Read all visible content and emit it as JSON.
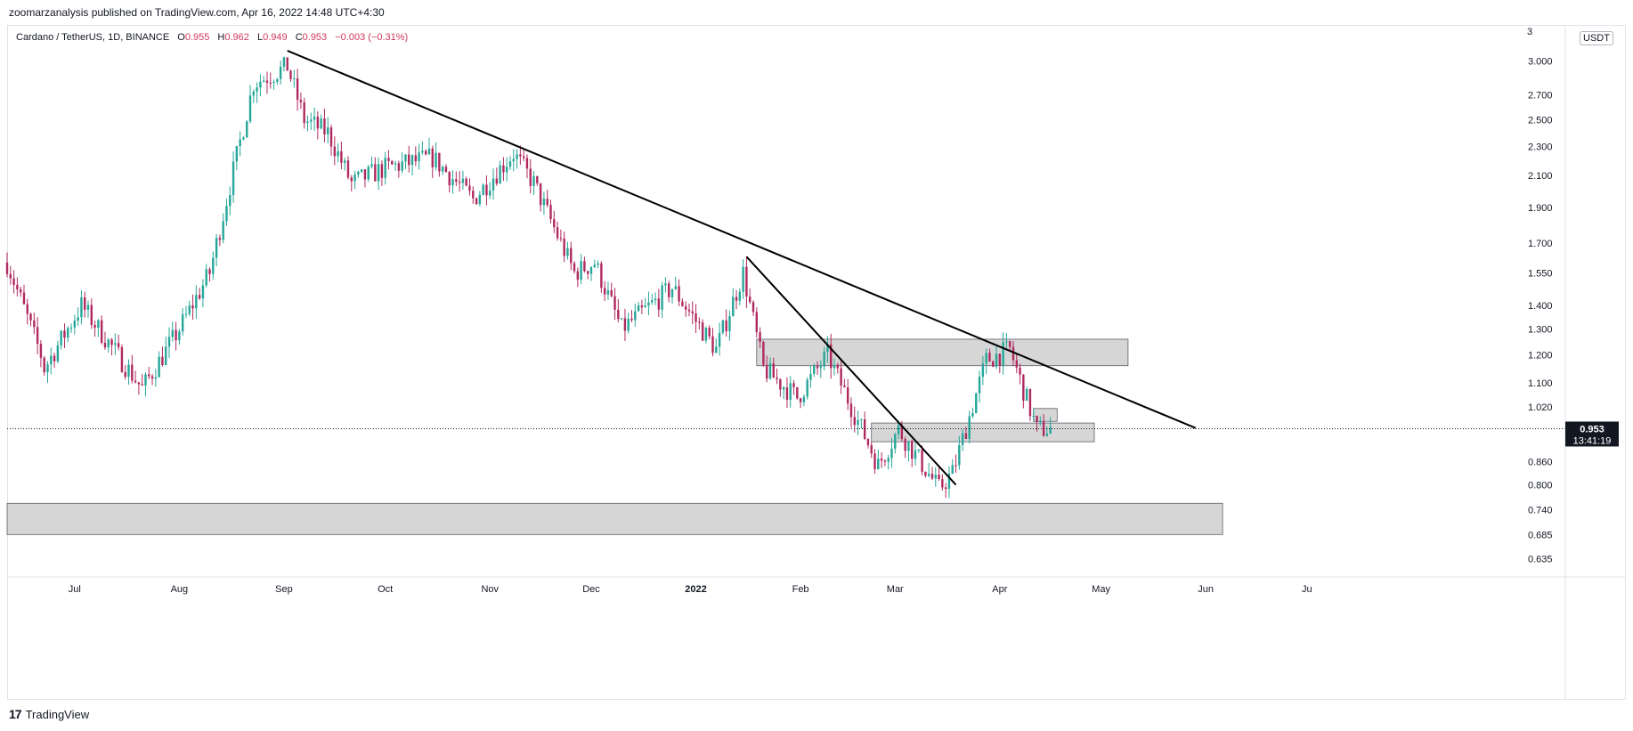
{
  "header": {
    "published": "zoomarzanalysis published on TradingView.com, Apr 16, 2022 14:48 UTC+4:30"
  },
  "legend": {
    "symbol": "Cardano / TetherUS, 1D, BINANCE",
    "o_label": "O",
    "o": "0.955",
    "h_label": "H",
    "h": "0.962",
    "l_label": "L",
    "l": "0.949",
    "c_label": "C",
    "c": "0.953",
    "change": "−0.003 (−0.31%)"
  },
  "currency": "USDT",
  "footer": {
    "brand": "TradingView"
  },
  "price_label": {
    "value": "0.953",
    "countdown": "13:41:19"
  },
  "colors": {
    "up": "#26a69a",
    "down": "#b0295f",
    "zone": "#cfcfcf",
    "line": "#000000",
    "price": "#131722"
  },
  "chart_data": {
    "type": "candlestick",
    "scale": "log",
    "y_ticks": [
      {
        "value": 3.0,
        "label": "3.000"
      },
      {
        "value": 2.7,
        "label": "2.700"
      },
      {
        "value": 2.5,
        "label": "2.500"
      },
      {
        "value": 2.3,
        "label": "2.300"
      },
      {
        "value": 2.1,
        "label": "2.100"
      },
      {
        "value": 1.9,
        "label": "1.900"
      },
      {
        "value": 1.7,
        "label": "1.700"
      },
      {
        "value": 1.55,
        "label": "1.550"
      },
      {
        "value": 1.4,
        "label": "1.400"
      },
      {
        "value": 1.3,
        "label": "1.300"
      },
      {
        "value": 1.2,
        "label": "1.200"
      },
      {
        "value": 1.1,
        "label": "1.100"
      },
      {
        "value": 1.02,
        "label": "1.020"
      },
      {
        "value": 0.86,
        "label": "0.860"
      },
      {
        "value": 0.8,
        "label": "0.800"
      },
      {
        "value": 0.74,
        "label": "0.740"
      },
      {
        "value": 0.685,
        "label": "0.685"
      },
      {
        "value": 0.635,
        "label": "0.635"
      }
    ],
    "y_top_partial": "3",
    "ylim": [
      0.6,
      3.35
    ],
    "xlim": [
      "2021-06-11",
      "2022-07-10"
    ],
    "x_ticks": [
      {
        "date": "2021-07-01",
        "label": "Jul"
      },
      {
        "date": "2021-08-01",
        "label": "Aug"
      },
      {
        "date": "2021-09-01",
        "label": "Sep"
      },
      {
        "date": "2021-10-01",
        "label": "Oct"
      },
      {
        "date": "2021-11-01",
        "label": "Nov"
      },
      {
        "date": "2021-12-01",
        "label": "Dec"
      },
      {
        "date": "2022-01-01",
        "label": "2022",
        "bold": true
      },
      {
        "date": "2022-02-01",
        "label": "Feb"
      },
      {
        "date": "2022-03-01",
        "label": "Mar"
      },
      {
        "date": "2022-04-01",
        "label": "Apr"
      },
      {
        "date": "2022-05-01",
        "label": "May"
      },
      {
        "date": "2022-06-01",
        "label": "Jun"
      },
      {
        "date": "2022-07-01",
        "label": "Ju"
      }
    ],
    "current_price": 0.953,
    "trendlines": [
      {
        "x1": "2021-09-02",
        "y1": 3.1,
        "x2": "2022-05-29",
        "y2": 0.955
      },
      {
        "x1": "2022-01-16",
        "y1": 1.63,
        "x2": "2022-03-19",
        "y2": 0.8
      }
    ],
    "zones": [
      {
        "x1": "2022-01-19",
        "x2": "2022-05-09",
        "y_low": 1.16,
        "y_high": 1.26
      },
      {
        "x1": "2022-02-22",
        "x2": "2022-04-29",
        "y_low": 0.915,
        "y_high": 0.97
      },
      {
        "x1": "2022-04-11",
        "x2": "2022-04-18",
        "y_low": 0.975,
        "y_high": 1.015
      },
      {
        "x1": "2021-06-11",
        "x2": "2022-06-06",
        "y_low": 0.685,
        "y_high": 0.755
      }
    ],
    "anchors": [
      {
        "date": "2021-06-11",
        "close": 1.6
      },
      {
        "date": "2021-06-21",
        "close": 1.2
      },
      {
        "date": "2021-06-22",
        "close": 1.15
      },
      {
        "date": "2021-07-03",
        "close": 1.4
      },
      {
        "date": "2021-07-21",
        "close": 1.08
      },
      {
        "date": "2021-08-01",
        "close": 1.3
      },
      {
        "date": "2021-08-10",
        "close": 1.55
      },
      {
        "date": "2021-08-23",
        "close": 2.8
      },
      {
        "date": "2021-09-02",
        "close": 2.95
      },
      {
        "date": "2021-09-07",
        "close": 2.5
      },
      {
        "date": "2021-09-14",
        "close": 2.4
      },
      {
        "date": "2021-09-21",
        "close": 2.05
      },
      {
        "date": "2021-10-01",
        "close": 2.15
      },
      {
        "date": "2021-10-15",
        "close": 2.22
      },
      {
        "date": "2021-10-27",
        "close": 1.95
      },
      {
        "date": "2021-11-08",
        "close": 2.25
      },
      {
        "date": "2021-11-14",
        "close": 2.05
      },
      {
        "date": "2021-11-26",
        "close": 1.55
      },
      {
        "date": "2021-12-02",
        "close": 1.6
      },
      {
        "date": "2021-12-10",
        "close": 1.3
      },
      {
        "date": "2021-12-25",
        "close": 1.48
      },
      {
        "date": "2022-01-07",
        "close": 1.22
      },
      {
        "date": "2022-01-15",
        "close": 1.55
      },
      {
        "date": "2022-01-21",
        "close": 1.15
      },
      {
        "date": "2022-01-31",
        "close": 1.05
      },
      {
        "date": "2022-02-09",
        "close": 1.2
      },
      {
        "date": "2022-02-24",
        "close": 0.85
      },
      {
        "date": "2022-03-02",
        "close": 0.95
      },
      {
        "date": "2022-03-14",
        "close": 0.79
      },
      {
        "date": "2022-03-18",
        "close": 0.83
      },
      {
        "date": "2022-03-28",
        "close": 1.18
      },
      {
        "date": "2022-04-04",
        "close": 1.22
      },
      {
        "date": "2022-04-12",
        "close": 0.95
      },
      {
        "date": "2022-04-16",
        "close": 0.953
      }
    ]
  }
}
